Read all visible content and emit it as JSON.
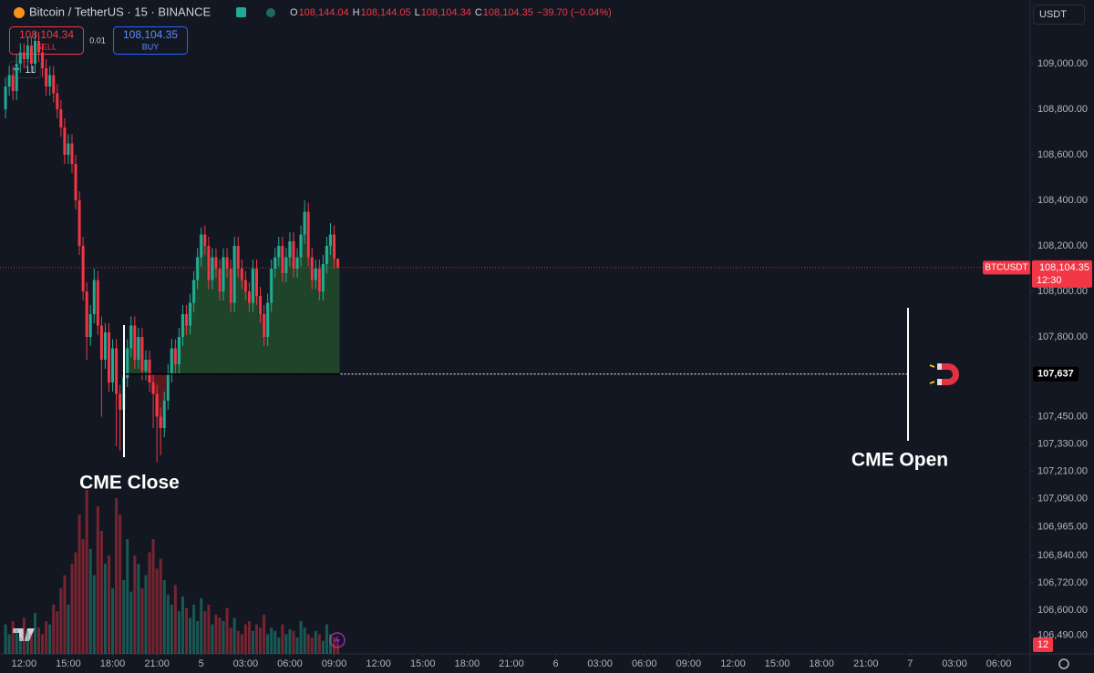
{
  "toolbar": {
    "symbol": "Bitcoin / TetherUS · 15 · BINANCE",
    "ohlc": [
      {
        "label": "O",
        "value": "108,144.04"
      },
      {
        "label": "H",
        "value": "108,144.05"
      },
      {
        "label": "L",
        "value": "108,104.34"
      },
      {
        "label": "C",
        "value": "108,104.35"
      }
    ],
    "change": "−39.70 (−0.04%)",
    "sell_price": "108,104.34",
    "sell": "SELL",
    "quantity": "0.01",
    "buy_price": "108,104.35",
    "buy": "BUY",
    "indicators_count": "11",
    "currency": "USDT",
    "alerts_count": "12"
  },
  "chart_data": {
    "type": "candlestick",
    "up_color": "#22ab94",
    "down_color": "#f23645",
    "grid": false,
    "xlim": [
      -1.5,
      277.5
    ],
    "ylim": [
      106400,
      109280
    ],
    "vlim": [
      0,
      100
    ],
    "xticks": [
      {
        "value": 5,
        "label": "12:00"
      },
      {
        "value": 17,
        "label": "15:00"
      },
      {
        "value": 29,
        "label": "18:00"
      },
      {
        "value": 41,
        "label": "21:00"
      },
      {
        "value": 53,
        "label": "5"
      },
      {
        "value": 65,
        "label": "03:00"
      },
      {
        "value": 77,
        "label": "06:00"
      },
      {
        "value": 89,
        "label": "09:00"
      },
      {
        "value": 101,
        "label": "12:00"
      },
      {
        "value": 113,
        "label": "15:00"
      },
      {
        "value": 125,
        "label": "18:00"
      },
      {
        "value": 137,
        "label": "21:00"
      },
      {
        "value": 149,
        "label": "6"
      },
      {
        "value": 161,
        "label": "03:00"
      },
      {
        "value": 173,
        "label": "06:00"
      },
      {
        "value": 185,
        "label": "09:00"
      },
      {
        "value": 197,
        "label": "12:00"
      },
      {
        "value": 209,
        "label": "15:00"
      },
      {
        "value": 221,
        "label": "18:00"
      },
      {
        "value": 233,
        "label": "21:00"
      },
      {
        "value": 245,
        "label": "7"
      },
      {
        "value": 257,
        "label": "03:00"
      },
      {
        "value": 269,
        "label": "06:00"
      }
    ],
    "yticks": [
      {
        "value": 109000,
        "label": "109,000.00"
      },
      {
        "value": 108800,
        "label": "108,800.00"
      },
      {
        "value": 108600,
        "label": "108,600.00"
      },
      {
        "value": 108400,
        "label": "108,400.00"
      },
      {
        "value": 108200,
        "label": "108,200.00"
      },
      {
        "value": 108000,
        "label": "108,000.00"
      },
      {
        "value": 107800,
        "label": "107,800.00"
      },
      {
        "value": 107450,
        "label": "107,450.00"
      },
      {
        "value": 107330,
        "label": "107,330.00"
      },
      {
        "value": 107210,
        "label": "107,210.00"
      },
      {
        "value": 107090,
        "label": "107,090.00"
      },
      {
        "value": 106965,
        "label": "106,965.00"
      },
      {
        "value": 106840,
        "label": "106,840.00"
      },
      {
        "value": 106720,
        "label": "106,720.00"
      },
      {
        "value": 106600,
        "label": "106,600.00"
      },
      {
        "value": 106490,
        "label": "106,490.00"
      }
    ],
    "open": [
      108800,
      108900,
      108950,
      108880,
      109000,
      109050,
      109020,
      109080,
      109000,
      109100,
      109050,
      108980,
      108900,
      108950,
      108870,
      108800,
      108720,
      108600,
      108650,
      108560,
      108400,
      108200,
      108000,
      107800,
      107900,
      108050,
      107850,
      107700,
      107820,
      107600,
      107750,
      107550,
      107480,
      107620,
      107750,
      107850,
      107700,
      107800,
      107650,
      107700,
      107600,
      107550,
      107450,
      107400,
      107520,
      107640,
      107750,
      107680,
      107800,
      107900,
      107850,
      107950,
      108050,
      108150,
      108250,
      108200,
      108050,
      108150,
      108100,
      108000,
      108150,
      108100,
      107950,
      108200,
      108100,
      108050,
      108000,
      107950,
      108100,
      107980,
      107900,
      107800,
      107950,
      108100,
      108150,
      108200,
      108080,
      108150,
      108220,
      108100,
      108150,
      108250,
      108350,
      108150,
      108050,
      108100,
      108000,
      108120,
      108200,
      108250,
      108144.04
    ],
    "high": [
      108940,
      108990,
      108990,
      109040,
      109090,
      109090,
      109120,
      109120,
      109140,
      109140,
      109090,
      109020,
      108990,
      108990,
      108910,
      108840,
      108760,
      108690,
      108690,
      108600,
      108440,
      108240,
      108040,
      107940,
      108100,
      108090,
      107890,
      107860,
      107860,
      107790,
      107790,
      107590,
      107660,
      107790,
      107890,
      107890,
      107840,
      107840,
      107740,
      107740,
      107640,
      107590,
      107490,
      107560,
      107680,
      107790,
      107790,
      107840,
      107940,
      107940,
      107990,
      108090,
      108190,
      108280,
      108290,
      108240,
      108190,
      108190,
      108140,
      108190,
      108190,
      108140,
      108240,
      108240,
      108140,
      108090,
      108040,
      108140,
      108140,
      108020,
      107940,
      107990,
      108140,
      108190,
      108240,
      108240,
      108190,
      108260,
      108260,
      108190,
      108290,
      108400,
      108390,
      108190,
      108140,
      108140,
      108160,
      108240,
      108300,
      108290,
      108144.05
    ],
    "low": [
      108760,
      108860,
      108840,
      108840,
      108960,
      108980,
      108980,
      108960,
      108960,
      109010,
      108940,
      108860,
      108860,
      108830,
      108760,
      108680,
      108560,
      108560,
      108520,
      108360,
      108160,
      107960,
      107700,
      107760,
      107860,
      107810,
      107450,
      107660,
      107560,
      107560,
      107320,
      107300,
      107440,
      107580,
      107710,
      107660,
      107660,
      107610,
      107610,
      107560,
      107400,
      107250,
      107280,
      107360,
      107480,
      107600,
      107640,
      107640,
      107760,
      107810,
      107810,
      107910,
      108010,
      108110,
      108160,
      108010,
      108010,
      108060,
      107960,
      107960,
      108060,
      107910,
      107910,
      108060,
      108010,
      107960,
      107910,
      107910,
      107940,
      107860,
      107760,
      107760,
      107910,
      108060,
      108110,
      108040,
      108040,
      108110,
      108060,
      108060,
      108110,
      108210,
      108110,
      108010,
      108010,
      107960,
      107960,
      108080,
      108160,
      108100,
      108104.34
    ],
    "close": [
      108900,
      108950,
      108880,
      109000,
      109050,
      109020,
      109080,
      109000,
      109100,
      109050,
      108980,
      108900,
      108950,
      108870,
      108800,
      108720,
      108600,
      108650,
      108560,
      108400,
      108200,
      108000,
      107800,
      107900,
      108050,
      107850,
      107700,
      107820,
      107600,
      107750,
      107550,
      107480,
      107620,
      107750,
      107850,
      107700,
      107800,
      107650,
      107700,
      107600,
      107550,
      107450,
      107400,
      107520,
      107640,
      107750,
      107680,
      107800,
      107900,
      107850,
      107950,
      108050,
      108150,
      108250,
      108200,
      108050,
      108150,
      108100,
      108000,
      108150,
      108100,
      107950,
      108200,
      108100,
      108050,
      108000,
      107950,
      108100,
      107980,
      107900,
      107800,
      107950,
      108100,
      108150,
      108200,
      108080,
      108150,
      108220,
      108100,
      108150,
      108250,
      108350,
      108150,
      108050,
      108100,
      108000,
      108120,
      108200,
      108250,
      108144.04,
      108104.35
    ],
    "volume": [
      18,
      12,
      20,
      15,
      10,
      22,
      14,
      12,
      25,
      16,
      12,
      20,
      18,
      30,
      26,
      40,
      48,
      30,
      55,
      62,
      85,
      70,
      100,
      64,
      48,
      90,
      75,
      55,
      60,
      40,
      95,
      85,
      45,
      70,
      38,
      60,
      55,
      40,
      48,
      62,
      70,
      52,
      58,
      45,
      36,
      30,
      42,
      26,
      35,
      28,
      22,
      30,
      20,
      34,
      26,
      30,
      18,
      24,
      22,
      20,
      28,
      16,
      22,
      14,
      12,
      18,
      20,
      14,
      18,
      16,
      24,
      12,
      16,
      14,
      10,
      18,
      12,
      15,
      14,
      10,
      20,
      16,
      12,
      10,
      14,
      12,
      8,
      18,
      12,
      10,
      6
    ],
    "gap_level": {
      "value": 107637,
      "label": "107,637"
    },
    "last_price": {
      "value": 108104.35,
      "label": "108,104.35",
      "symbol": "BTCUSDT",
      "countdown": "12:30"
    },
    "annotations": [
      {
        "text": "CME Close"
      },
      {
        "text": "CME Open"
      }
    ]
  }
}
